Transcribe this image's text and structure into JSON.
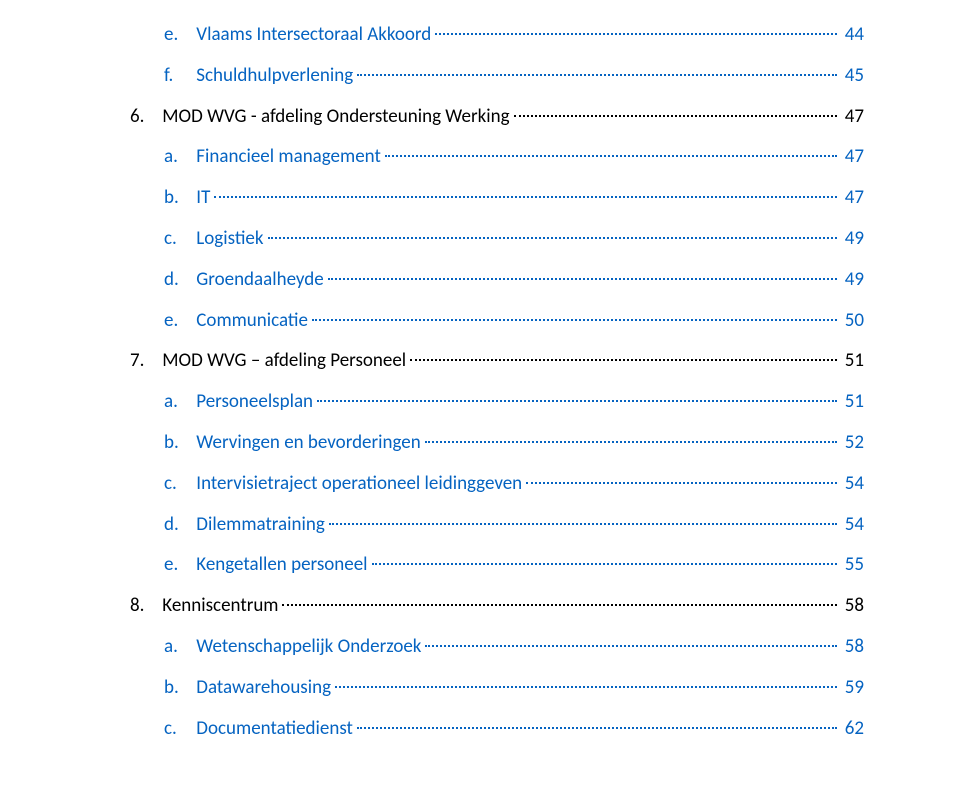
{
  "colors": {
    "link": "#0563c1",
    "text": "#000000",
    "background": "#ffffff"
  },
  "typography": {
    "font_family": "Calibri, Segoe UI, Arial, sans-serif",
    "font_size_pt": 14
  },
  "toc": [
    {
      "level": "sub",
      "marker": "e.",
      "title": "Vlaams Intersectoraal Akkoord",
      "page": "44",
      "style": "linkblue"
    },
    {
      "level": "sub",
      "marker": "f.",
      "title": "Schuldhulpverlening",
      "page": "45",
      "style": "linkblue"
    },
    {
      "level": "main",
      "marker": "6.",
      "title": "MOD WVG - afdeling Ondersteuning Werking",
      "page": "47",
      "style": "black"
    },
    {
      "level": "sub",
      "marker": "a.",
      "title": "Financieel management",
      "page": "47",
      "style": "linkblue"
    },
    {
      "level": "sub",
      "marker": "b.",
      "title": "IT",
      "page": "47",
      "style": "linkblue"
    },
    {
      "level": "sub",
      "marker": "c.",
      "title": "Logistiek",
      "page": "49",
      "style": "linkblue"
    },
    {
      "level": "sub",
      "marker": "d.",
      "title": "Groendaalheyde",
      "page": "49",
      "style": "linkblue"
    },
    {
      "level": "sub",
      "marker": "e.",
      "title": "Communicatie",
      "page": "50",
      "style": "linkblue"
    },
    {
      "level": "main",
      "marker": "7.",
      "title": "MOD WVG – afdeling Personeel",
      "page": "51",
      "style": "black"
    },
    {
      "level": "sub",
      "marker": "a.",
      "title": "Personeelsplan",
      "page": "51",
      "style": "linkblue"
    },
    {
      "level": "sub",
      "marker": "b.",
      "title": "Wervingen en bevorderingen",
      "page": "52",
      "style": "linkblue"
    },
    {
      "level": "sub",
      "marker": "c.",
      "title": "Intervisietraject operationeel leidinggeven",
      "page": "54",
      "style": "linkblue"
    },
    {
      "level": "sub",
      "marker": "d.",
      "title": "Dilemmatraining",
      "page": "54",
      "style": "linkblue"
    },
    {
      "level": "sub",
      "marker": "e.",
      "title": "Kengetallen personeel",
      "page": "55",
      "style": "linkblue"
    },
    {
      "level": "main",
      "marker": "8.",
      "title": "Kenniscentrum",
      "page": "58",
      "style": "black"
    },
    {
      "level": "sub",
      "marker": "a.",
      "title": "Wetenschappelijk Onderzoek",
      "page": "58",
      "style": "linkblue"
    },
    {
      "level": "sub",
      "marker": "b.",
      "title": "Datawarehousing",
      "page": "59",
      "style": "linkblue"
    },
    {
      "level": "sub",
      "marker": "c.",
      "title": "Documentatiedienst",
      "page": "62",
      "style": "linkblue"
    }
  ]
}
